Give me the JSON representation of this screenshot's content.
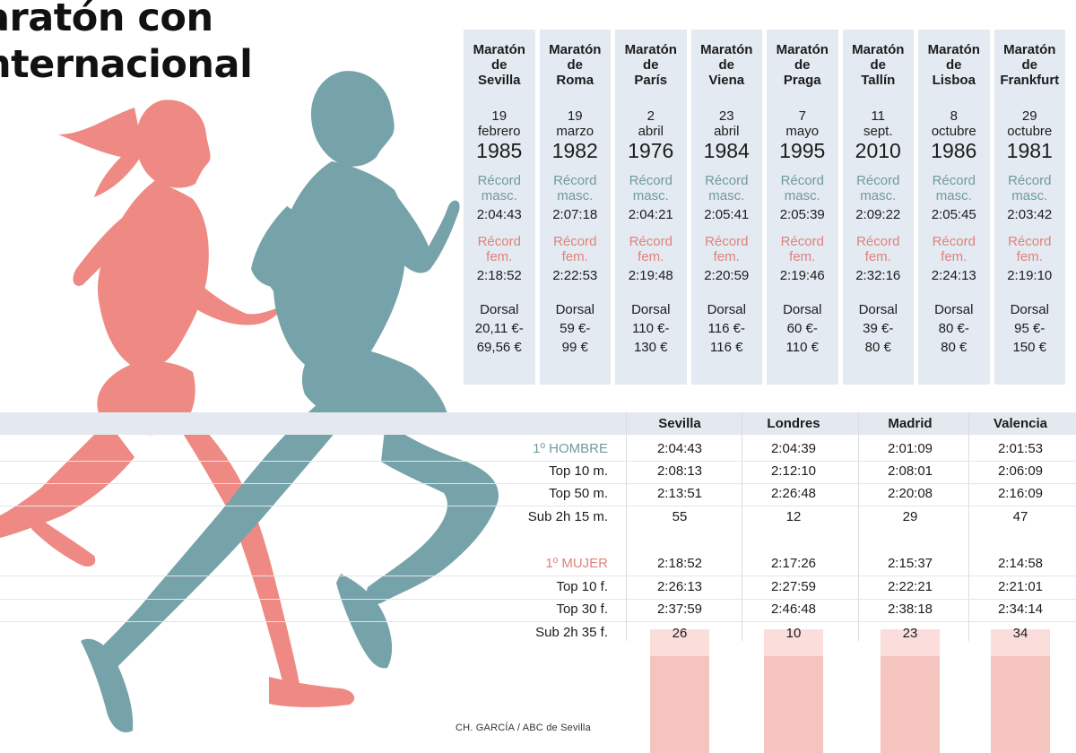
{
  "title": {
    "line1": "aratón con",
    "line2": "nternacional"
  },
  "colors": {
    "men": "#76a3a9",
    "women": "#ee8a83",
    "card_bg": "#e3eaf1",
    "bar": "#f6c4bf"
  },
  "marathons": [
    {
      "name": [
        "Maratón",
        "de",
        "Sevilla"
      ],
      "day": "19",
      "month": "febrero",
      "year": "1985",
      "record_m_label": [
        "Récord",
        "masc."
      ],
      "record_m": "2:04:43",
      "record_f_label": [
        "Récord",
        "fem."
      ],
      "record_f": "2:18:52",
      "dorsal_label": "Dorsal",
      "dorsal": [
        "20,11 €-",
        "69,56 €"
      ]
    },
    {
      "name": [
        "Maratón",
        "de",
        "Roma"
      ],
      "day": "19",
      "month": "marzo",
      "year": "1982",
      "record_m_label": [
        "Récord",
        "masc."
      ],
      "record_m": "2:07:18",
      "record_f_label": [
        "Récord",
        "fem."
      ],
      "record_f": "2:22:53",
      "dorsal_label": "Dorsal",
      "dorsal": [
        "59 €-",
        "99 €"
      ]
    },
    {
      "name": [
        "Maratón",
        "de",
        "París"
      ],
      "day": "2",
      "month": "abril",
      "year": "1976",
      "record_m_label": [
        "Récord",
        "masc."
      ],
      "record_m": "2:04:21",
      "record_f_label": [
        "Récord",
        "fem."
      ],
      "record_f": "2:19:48",
      "dorsal_label": "Dorsal",
      "dorsal": [
        "110 €-",
        "130 €"
      ]
    },
    {
      "name": [
        "Maratón",
        "de",
        "Viena"
      ],
      "day": "23",
      "month": "abril",
      "year": "1984",
      "record_m_label": [
        "Récord",
        "masc."
      ],
      "record_m": "2:05:41",
      "record_f_label": [
        "Récord",
        "fem."
      ],
      "record_f": "2:20:59",
      "dorsal_label": "Dorsal",
      "dorsal": [
        "116 €-",
        "116 €"
      ]
    },
    {
      "name": [
        "Maratón",
        "de",
        "Praga"
      ],
      "day": "7",
      "month": "mayo",
      "year": "1995",
      "record_m_label": [
        "Récord",
        "masc."
      ],
      "record_m": "2:05:39",
      "record_f_label": [
        "Récord",
        "fem."
      ],
      "record_f": "2:19:46",
      "dorsal_label": "Dorsal",
      "dorsal": [
        "60 €-",
        "110 €"
      ]
    },
    {
      "name": [
        "Maratón",
        "de",
        "Tallín"
      ],
      "day": "11",
      "month": "sept.",
      "year": "2010",
      "record_m_label": [
        "Récord",
        "masc."
      ],
      "record_m": "2:09:22",
      "record_f_label": [
        "Récord",
        "fem."
      ],
      "record_f": "2:32:16",
      "dorsal_label": "Dorsal",
      "dorsal": [
        "39 €-",
        "80 €"
      ]
    },
    {
      "name": [
        "Maratón",
        "de",
        "Lisboa"
      ],
      "day": "8",
      "month": "octubre",
      "year": "1986",
      "record_m_label": [
        "Récord",
        "masc."
      ],
      "record_m": "2:05:45",
      "record_f_label": [
        "Récord",
        "fem."
      ],
      "record_f": "2:24:13",
      "dorsal_label": "Dorsal",
      "dorsal": [
        "80 €-",
        "80 €"
      ]
    },
    {
      "name": [
        "Maratón",
        "de",
        "Frankfurt"
      ],
      "day": "29",
      "month": "octubre",
      "year": "1981",
      "record_m_label": [
        "Récord",
        "masc."
      ],
      "record_m": "2:03:42",
      "record_f_label": [
        "Récord",
        "fem."
      ],
      "record_f": "2:19:10",
      "dorsal_label": "Dorsal",
      "dorsal": [
        "95 €-",
        "150 €"
      ]
    }
  ],
  "comparison": {
    "columns": [
      "Sevilla",
      "Londres",
      "Madrid",
      "Valencia"
    ],
    "rows": [
      {
        "label": "1º HOMBRE",
        "kind": "men",
        "values": [
          "2:04:43",
          "2:04:39",
          "2:01:09",
          "2:01:53"
        ]
      },
      {
        "label": "Top 10 m.",
        "kind": "plain",
        "values": [
          "2:08:13",
          "2:12:10",
          "2:08:01",
          "2:06:09"
        ]
      },
      {
        "label": "Top 50 m.",
        "kind": "plain",
        "values": [
          "2:13:51",
          "2:26:48",
          "2:20:08",
          "2:16:09"
        ]
      },
      {
        "label": "Sub 2h 15 m.",
        "kind": "plain",
        "values": [
          "55",
          "12",
          "29",
          "47"
        ]
      },
      {
        "label": "1º MUJER",
        "kind": "women",
        "values": [
          "2:18:52",
          "2:17:26",
          "2:15:37",
          "2:14:58"
        ]
      },
      {
        "label": "Top 10 f.",
        "kind": "plain",
        "values": [
          "2:26:13",
          "2:27:59",
          "2:22:21",
          "2:21:01"
        ]
      },
      {
        "label": "Top 30 f.",
        "kind": "plain",
        "values": [
          "2:37:59",
          "2:46:48",
          "2:38:18",
          "2:34:14"
        ]
      },
      {
        "label": "Sub 2h 35 f.",
        "kind": "plain",
        "values": [
          "26",
          "10",
          "23",
          "34"
        ],
        "bars": true
      }
    ]
  },
  "credit": "CH. GARCÍA / ABC de Sevilla"
}
